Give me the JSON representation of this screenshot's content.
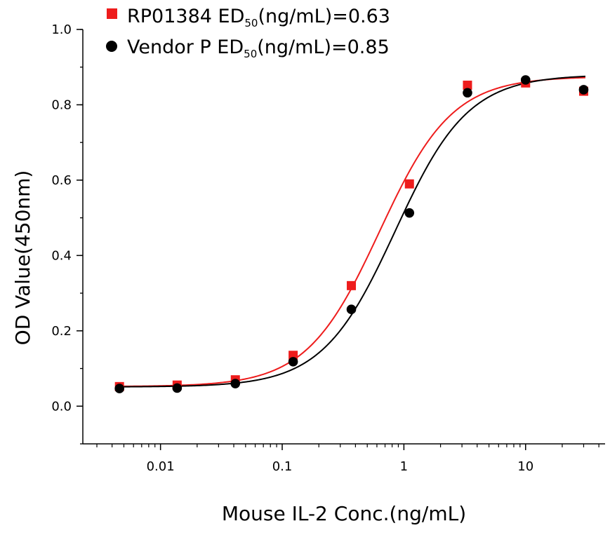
{
  "chart_data": {
    "type": "scatter",
    "xscale": "log",
    "xlabel": "Mouse IL-2 Conc.(ng/mL)",
    "ylabel": "OD Value(450nm)",
    "xlim": [
      0.0023,
      45
    ],
    "ylim": [
      -0.1,
      1.0
    ],
    "x_ticks": [
      0.01,
      0.1,
      1,
      10
    ],
    "x_tick_labels": [
      "0.01",
      "0.1",
      "1",
      "10"
    ],
    "y_ticks": [
      0.0,
      0.2,
      0.4,
      0.6,
      0.8,
      1.0
    ],
    "y_tick_labels": [
      "0.0",
      "0.2",
      "0.4",
      "0.6",
      "0.8",
      "1.0"
    ],
    "grid": false,
    "legend_position": "top-left",
    "series": [
      {
        "legend_main": "RP01384 ED",
        "legend_sub": "50",
        "legend_tail": "(ng/mL)=0.63",
        "marker": "square",
        "color": "#ee1c1c",
        "x": [
          0.0046,
          0.0137,
          0.0412,
          0.123,
          0.37,
          1.11,
          3.33,
          10,
          30
        ],
        "y": [
          0.052,
          0.056,
          0.07,
          0.135,
          0.32,
          0.59,
          0.852,
          0.858,
          0.836
        ],
        "fit": {
          "bottom": 0.052,
          "top": 0.875,
          "ec50": 0.63,
          "hill": 1.45
        }
      },
      {
        "legend_main": "Vendor P ED",
        "legend_sub": "50",
        "legend_tail": "(ng/mL)=0.85",
        "marker": "circle",
        "color": "#000000",
        "x": [
          0.0046,
          0.0137,
          0.0412,
          0.123,
          0.37,
          1.11,
          3.33,
          10,
          30
        ],
        "y": [
          0.047,
          0.048,
          0.06,
          0.118,
          0.257,
          0.513,
          0.832,
          0.866,
          0.84
        ],
        "fit": {
          "bottom": 0.051,
          "top": 0.88,
          "ec50": 0.85,
          "hill": 1.45
        }
      }
    ]
  }
}
